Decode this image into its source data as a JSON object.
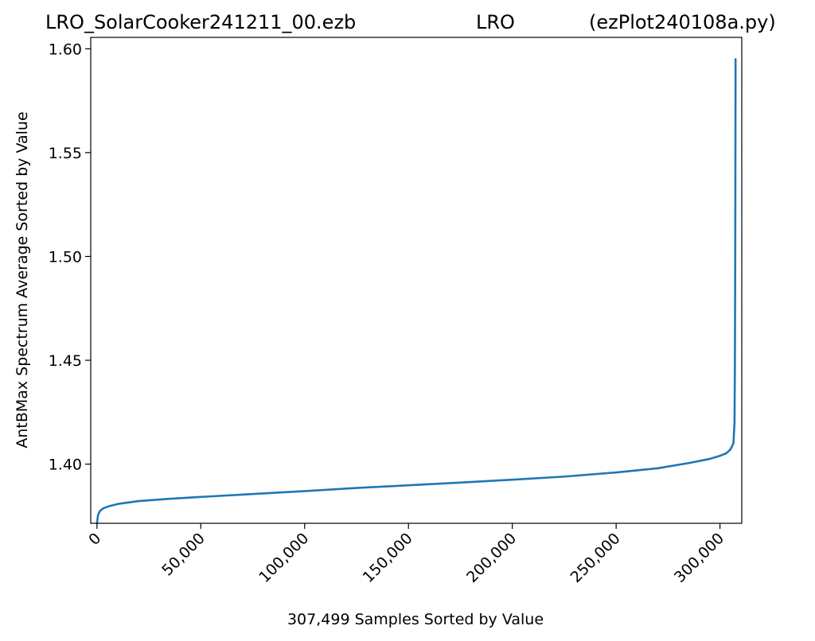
{
  "title": {
    "left": "LRO_SolarCooker241211_00.ezb",
    "center": "LRO",
    "right": "(ezPlot240108a.py)"
  },
  "chart_data": {
    "type": "line",
    "xlabel": "307,499 Samples Sorted by Value",
    "ylabel": "AntBMax Spectrum Average Sorted by Value",
    "xlim": [
      -3000,
      310500
    ],
    "ylim": [
      1.3715,
      1.6055
    ],
    "xticks": [
      0,
      50000,
      100000,
      150000,
      200000,
      250000,
      300000
    ],
    "xtick_labels": [
      "0",
      "50,000",
      "100,000",
      "150,000",
      "200,000",
      "250,000",
      "300,000"
    ],
    "yticks": [
      1.4,
      1.45,
      1.5,
      1.55,
      1.6
    ],
    "ytick_labels": [
      "1.40",
      "1.45",
      "1.50",
      "1.55",
      "1.60"
    ],
    "grid": false,
    "color": "#1f77b4",
    "series": [
      {
        "x": [
          0,
          500,
          1500,
          3000,
          6000,
          10000,
          20000,
          35000,
          50000,
          75000,
          100000,
          125000,
          150000,
          175000,
          200000,
          225000,
          250000,
          270000,
          285000,
          295000,
          300000,
          303000,
          305000,
          306500,
          307000,
          307200,
          307350,
          307450,
          307499
        ],
        "y": [
          1.3715,
          1.3755,
          1.3775,
          1.3787,
          1.3798,
          1.3808,
          1.3822,
          1.3833,
          1.3842,
          1.3856,
          1.387,
          1.3885,
          1.3898,
          1.3911,
          1.3925,
          1.394,
          1.396,
          1.398,
          1.4005,
          1.4025,
          1.404,
          1.4052,
          1.407,
          1.41,
          1.42,
          1.45,
          1.5,
          1.56,
          1.595
        ]
      }
    ]
  }
}
